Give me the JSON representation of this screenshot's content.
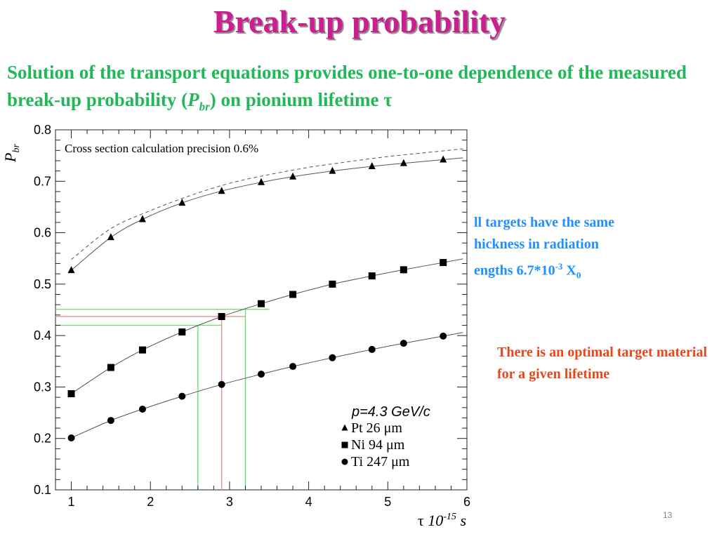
{
  "slide": {
    "title": "Break-up probability",
    "subtitle_part1": "Solution of the transport equations provides one-to-one dependence of the measured break-up probability (",
    "subtitle_p": "P",
    "subtitle_br": "br",
    "subtitle_part2": ") on pionium lifetime τ",
    "note_blue_line1": "ll targets have the same",
    "note_blue_line2": "hickness in radiation",
    "note_blue_line3_pre": "engths 6.7*10",
    "note_blue_exp": "-3",
    "note_blue_x": " X",
    "note_blue_sub": "0",
    "note_red": "There is an optimal target material for a given lifetime",
    "page_number": "13"
  },
  "chart_data": {
    "type": "scatter",
    "annotation": "Cross section calculation precision 0.6%",
    "ylabel_main": "P",
    "ylabel_sub": "br",
    "xlabel_tau": "τ",
    "xlabel_base": "10",
    "xlabel_exp": "-15",
    "xlabel_unit": "s",
    "xlim": [
      0.8,
      6
    ],
    "ylim": [
      0.1,
      0.8
    ],
    "x_ticks": [
      "1",
      "2",
      "3",
      "4",
      "5",
      "6"
    ],
    "y_ticks": [
      "0.1",
      "0.2",
      "0.3",
      "0.4",
      "0.5",
      "0.6",
      "0.7",
      "0.8"
    ],
    "legend_header_p": "p",
    "legend_header_rest": "=4.3 GeV/c",
    "series": [
      {
        "name": "Pt 26  μm",
        "marker": "triangle",
        "x": [
          1.0,
          1.5,
          1.9,
          2.4,
          2.9,
          3.4,
          3.8,
          4.3,
          4.8,
          5.2,
          5.7
        ],
        "y": [
          0.527,
          0.591,
          0.626,
          0.658,
          0.681,
          0.698,
          0.709,
          0.72,
          0.729,
          0.735,
          0.742
        ]
      },
      {
        "name": "Ni 94  μm",
        "marker": "square",
        "x": [
          1.0,
          1.5,
          1.9,
          2.4,
          2.9,
          3.4,
          3.8,
          4.3,
          4.8,
          5.2,
          5.7
        ],
        "y": [
          0.287,
          0.338,
          0.372,
          0.407,
          0.437,
          0.462,
          0.48,
          0.5,
          0.516,
          0.528,
          0.542
        ]
      },
      {
        "name": "Ti 247  μm",
        "marker": "circle",
        "x": [
          1.0,
          1.5,
          1.9,
          2.4,
          2.9,
          3.4,
          3.8,
          4.3,
          4.8,
          5.2,
          5.7
        ],
        "y": [
          0.201,
          0.235,
          0.257,
          0.282,
          0.305,
          0.325,
          0.34,
          0.357,
          0.373,
          0.385,
          0.399
        ]
      }
    ],
    "dashed_curve": {
      "x": [
        1.0,
        1.5,
        2.0,
        2.5,
        3.0,
        3.5,
        4.0,
        4.5,
        5.0,
        5.5,
        5.95
      ],
      "y": [
        0.548,
        0.608,
        0.643,
        0.672,
        0.696,
        0.713,
        0.727,
        0.738,
        0.748,
        0.756,
        0.763
      ]
    },
    "guide_lines": [
      {
        "color": "#66dd66",
        "x": 2.6,
        "y": 0.42
      },
      {
        "color": "#ee8888",
        "x": 2.9,
        "y": 0.437
      },
      {
        "color": "#66dd66",
        "x": 3.2,
        "y": 0.451
      }
    ]
  }
}
